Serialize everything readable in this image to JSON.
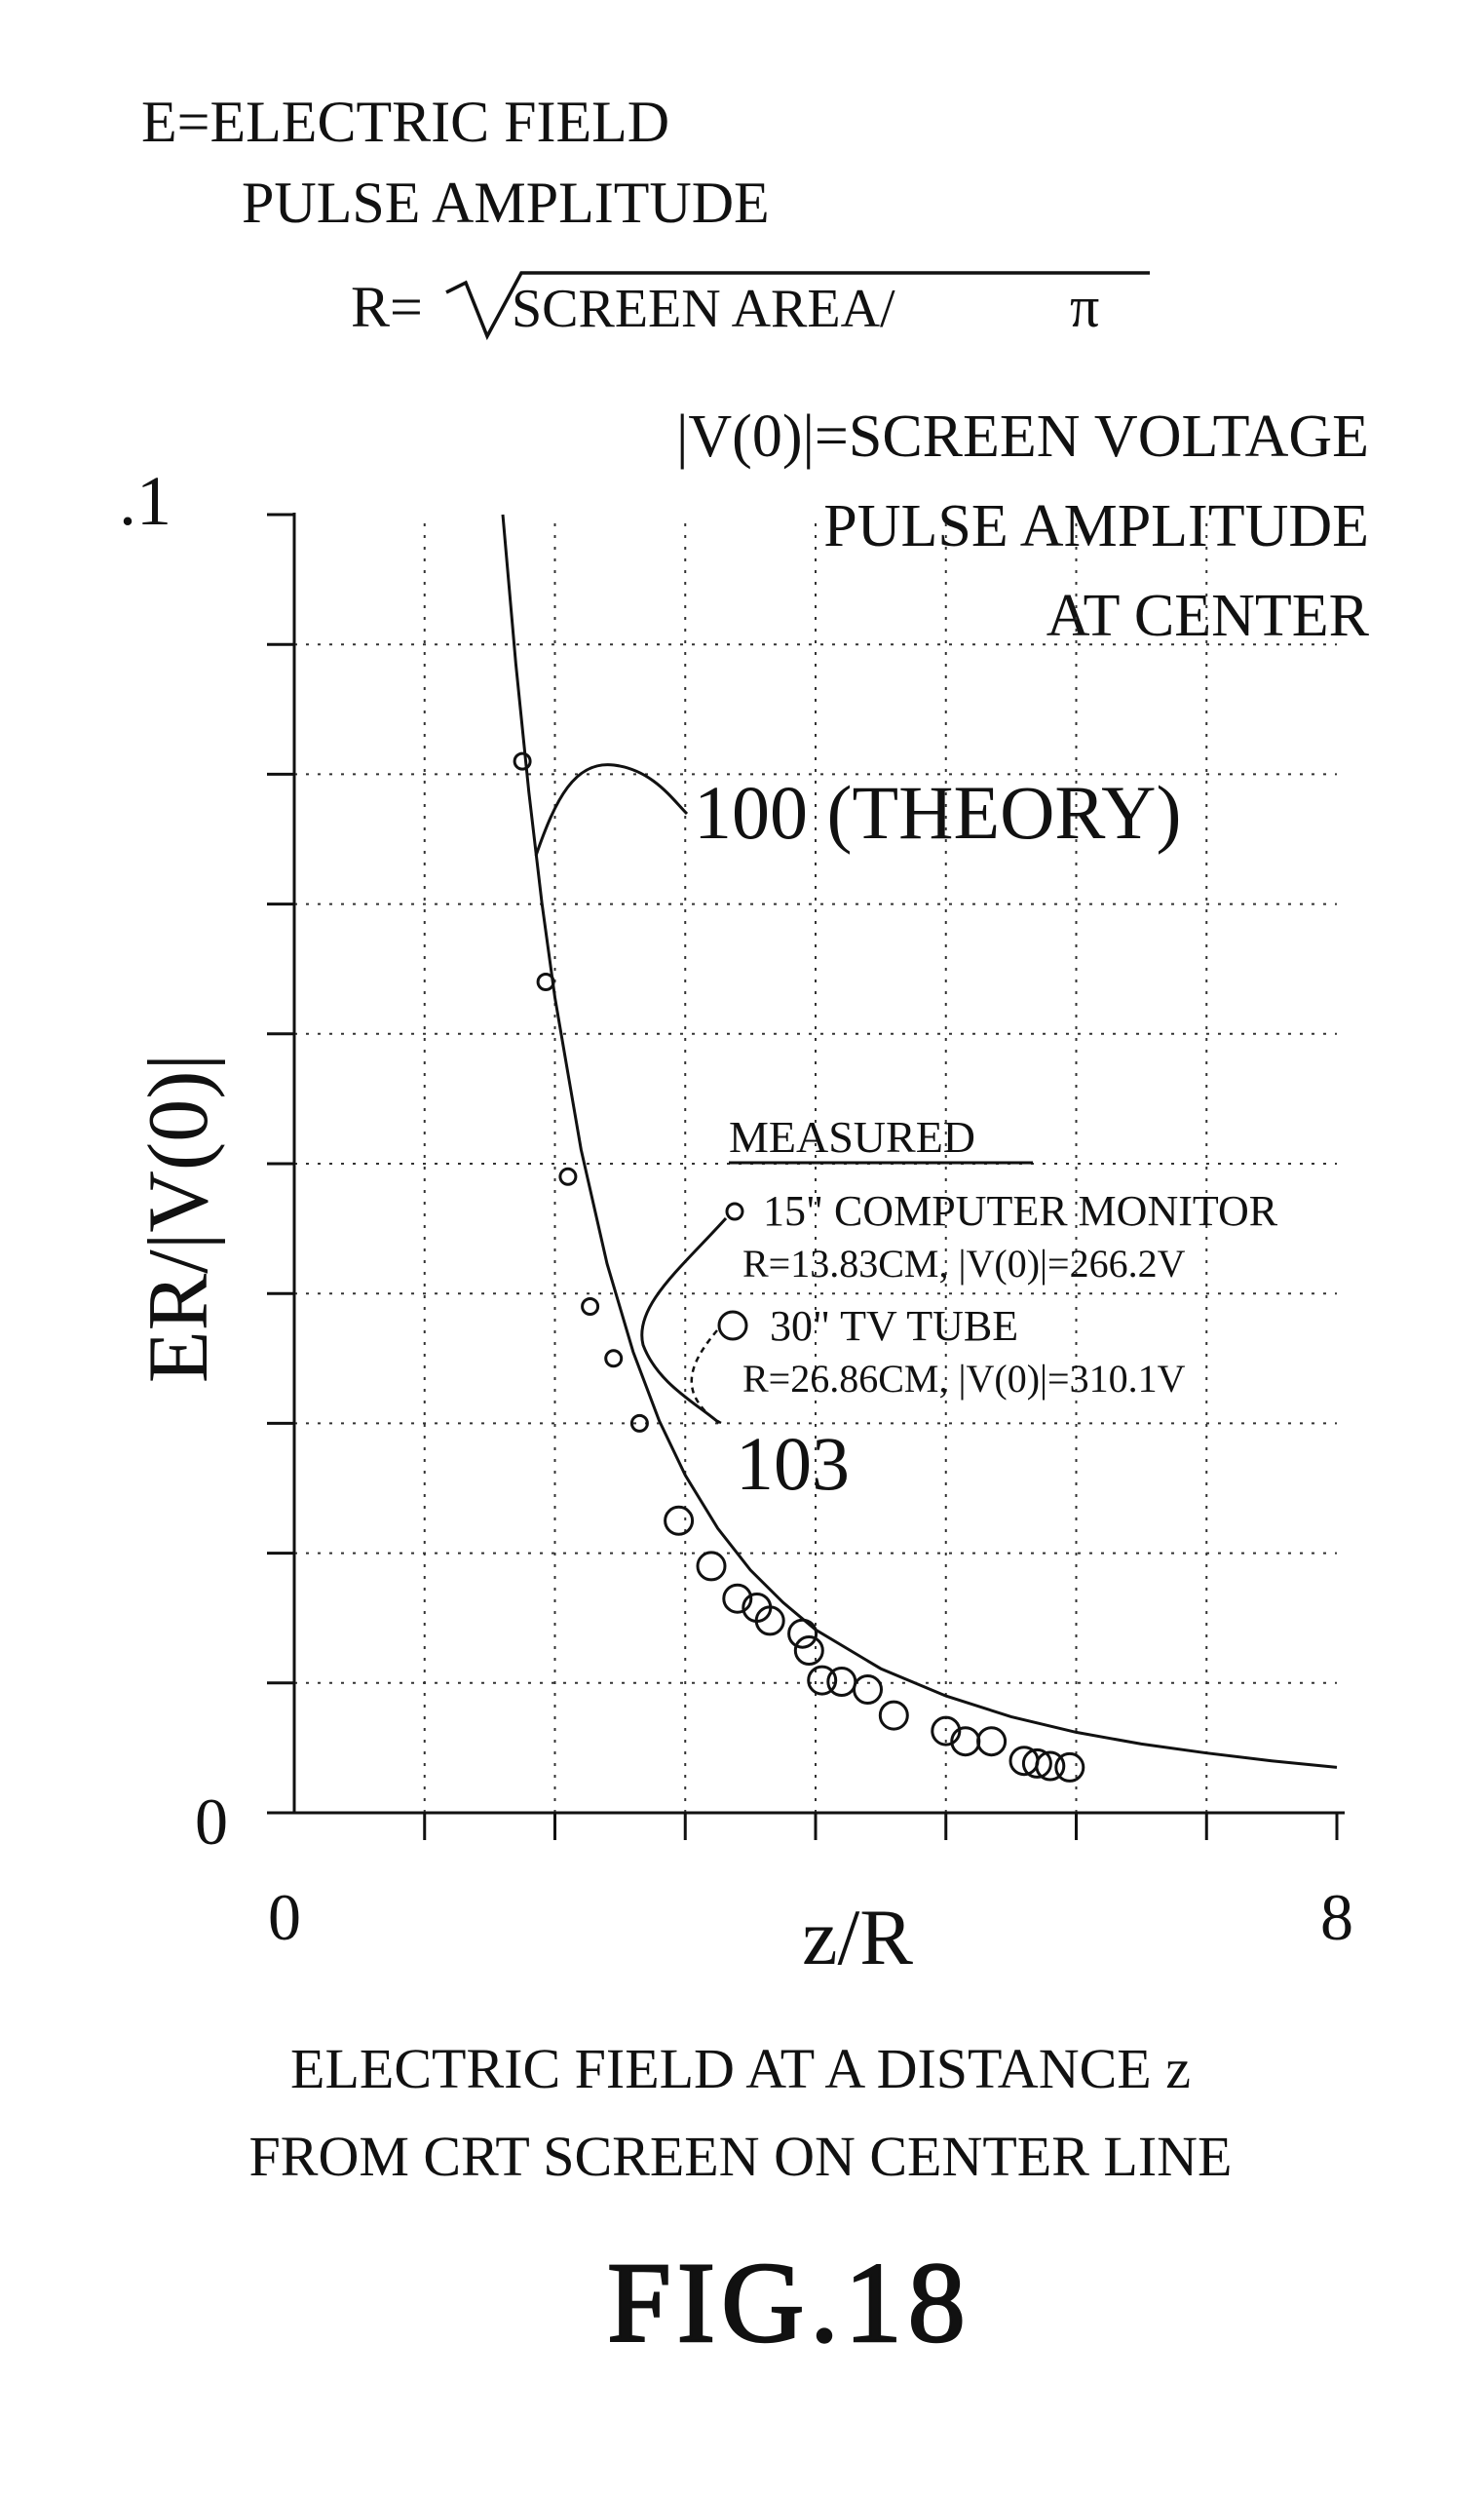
{
  "header": {
    "e_def_line1": "E=ELECTRIC FIELD",
    "e_def_line2": "PULSE AMPLITUDE",
    "r_prefix": "R=",
    "r_expr": "SCREEN AREA/",
    "r_pi": "π",
    "v_def_line1": "|V(0)|=SCREEN VOLTAGE",
    "v_def_line2": "PULSE AMPLITUDE",
    "v_def_line3": "AT CENTER"
  },
  "annotations": {
    "theory_label": "100 (THEORY)",
    "measured_ref": "103",
    "measured_title": "MEASURED",
    "series1_line1": "15\" COMPUTER MONITOR",
    "series1_line2": "R=13.83CM, |V(0)|=266.2V",
    "series2_line1": "30\" TV TUBE",
    "series2_line2": "R=26.86CM, |V(0)|=310.1V"
  },
  "caption": {
    "line1": "ELECTRIC FIELD AT A DISTANCE z",
    "line2": "FROM CRT SCREEN ON CENTER LINE",
    "figure": "FIG.18"
  },
  "chart_data": {
    "type": "scatter",
    "title": "",
    "xlabel": "z/R",
    "ylabel": "ER/|V(0)|",
    "xlim": [
      0,
      8
    ],
    "ylim": [
      0,
      0.1
    ],
    "x_tick_labels": [
      "0",
      "8"
    ],
    "y_tick_labels": [
      "0",
      ".1"
    ],
    "grid": "dotted",
    "theory_curve": {
      "name": "100 (THEORY)",
      "x": [
        1.6,
        1.7,
        1.8,
        1.9,
        2.0,
        2.2,
        2.4,
        2.6,
        2.8,
        3.0,
        3.25,
        3.5,
        3.75,
        4.0,
        4.5,
        5.0,
        5.5,
        6.0,
        6.5,
        7.0,
        7.5,
        8.0
      ],
      "y": [
        0.1,
        0.0885,
        0.0786,
        0.0701,
        0.0628,
        0.0511,
        0.0423,
        0.0355,
        0.0302,
        0.026,
        0.0219,
        0.0187,
        0.0162,
        0.0141,
        0.0111,
        0.009,
        0.0074,
        0.0062,
        0.0053,
        0.0046,
        0.004,
        0.0035
      ]
    },
    "series": [
      {
        "name": "15\" COMPUTER MONITOR",
        "marker": "small-circle",
        "x": [
          1.75,
          1.93,
          2.1,
          2.27,
          2.45,
          2.65
        ],
        "y": [
          0.081,
          0.064,
          0.049,
          0.039,
          0.035,
          0.03
        ]
      },
      {
        "name": "30\" TV TUBE",
        "marker": "large-circle",
        "x": [
          2.95,
          3.2,
          3.4,
          3.55,
          3.65,
          3.9,
          3.95,
          4.05,
          4.2,
          4.4,
          4.6,
          5.0,
          5.15,
          5.35,
          5.6,
          5.7,
          5.8,
          5.95
        ],
        "y": [
          0.0225,
          0.019,
          0.0165,
          0.0158,
          0.0148,
          0.0138,
          0.0125,
          0.0102,
          0.0101,
          0.0095,
          0.0075,
          0.0063,
          0.0055,
          0.0055,
          0.004,
          0.0038,
          0.0036,
          0.0035
        ]
      }
    ]
  }
}
